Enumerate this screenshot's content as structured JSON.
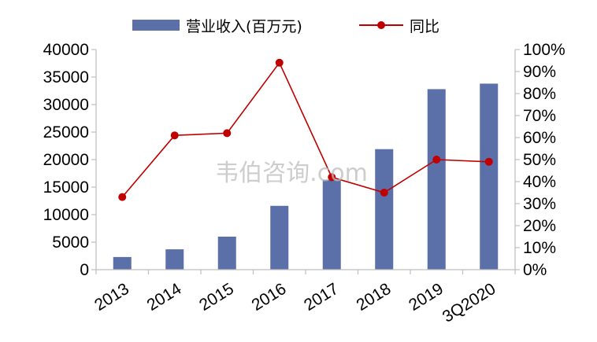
{
  "chart_data": {
    "type": "bar+line",
    "categories": [
      "2013",
      "2014",
      "2015",
      "2016",
      "2017",
      "2018",
      "2019",
      "3Q2020"
    ],
    "series": [
      {
        "name": "营业收入(百万元)",
        "type": "bar",
        "axis": "left",
        "values": [
          2300,
          3700,
          6000,
          11600,
          16300,
          21900,
          32800,
          33800
        ]
      },
      {
        "name": "同比",
        "type": "line",
        "axis": "right",
        "values": [
          33,
          61,
          62,
          94,
          42,
          35,
          50,
          49
        ]
      }
    ],
    "left_axis": {
      "min": 0,
      "max": 40000,
      "step": 5000,
      "ticks": [
        "0",
        "5000",
        "10000",
        "15000",
        "20000",
        "25000",
        "30000",
        "35000",
        "40000"
      ]
    },
    "right_axis": {
      "min": 0,
      "max": 100,
      "step": 10,
      "ticks": [
        "0%",
        "10%",
        "20%",
        "30%",
        "40%",
        "50%",
        "60%",
        "70%",
        "80%",
        "90%",
        "100%"
      ]
    },
    "legend_position": "top",
    "grid": false
  },
  "watermark": "韦伯咨询.com",
  "colors": {
    "bar": "#5b6fa8",
    "line": "#c00000",
    "axis": "#bfbfbf"
  }
}
